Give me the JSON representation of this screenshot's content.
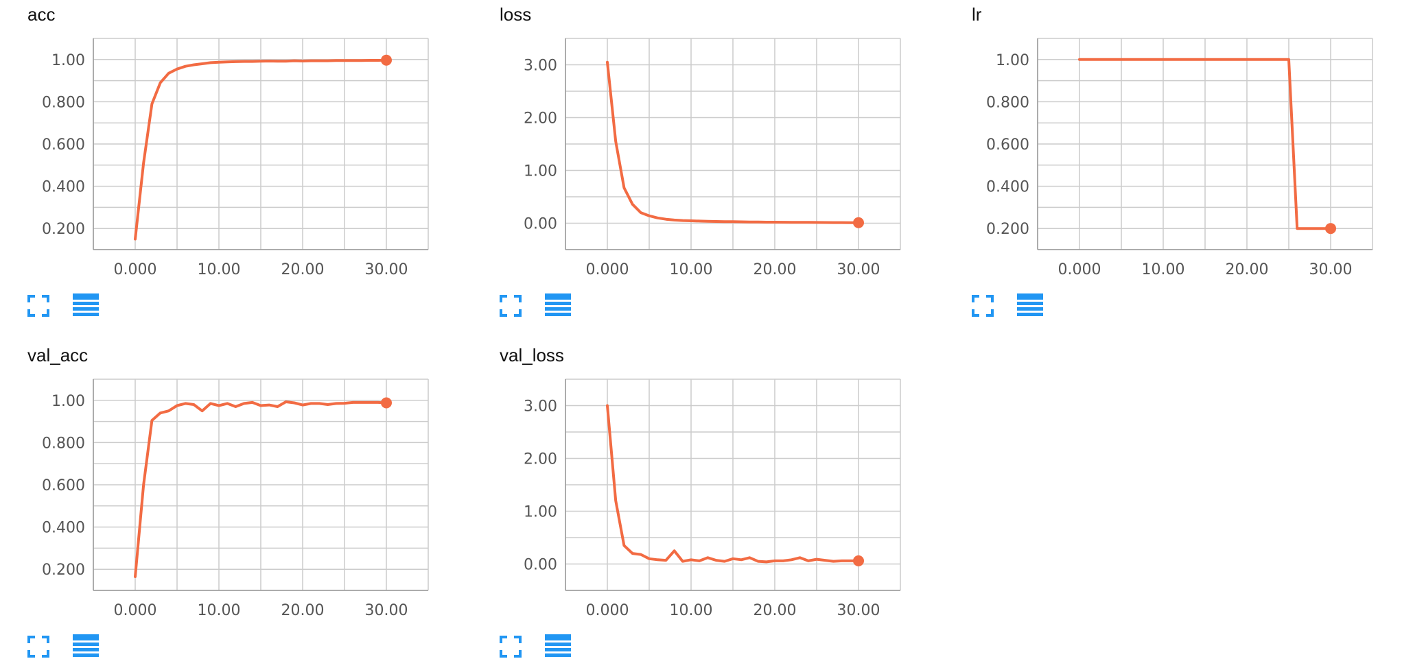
{
  "theme": {
    "series_color": "#f26b43",
    "icon_color": "#2196f3"
  },
  "icons": {
    "expand": "expand-icon",
    "data_table": "data-table-icon"
  },
  "chart_data": [
    {
      "id": "acc",
      "type": "line",
      "title": "acc",
      "xlim": [
        -5,
        35
      ],
      "ylim": [
        0.1,
        1.1
      ],
      "xticks": [
        0,
        10,
        20,
        30
      ],
      "xtick_labels": [
        "0.000",
        "10.00",
        "20.00",
        "30.00"
      ],
      "yticks": [
        0.2,
        0.4,
        0.6,
        0.8,
        1.0
      ],
      "ytick_labels": [
        "0.200",
        "0.400",
        "0.600",
        "0.800",
        "1.00"
      ],
      "grid": true,
      "x": [
        0,
        1,
        2,
        3,
        4,
        5,
        6,
        7,
        8,
        9,
        10,
        11,
        12,
        13,
        14,
        15,
        16,
        17,
        18,
        19,
        20,
        21,
        22,
        23,
        24,
        25,
        26,
        27,
        28,
        29,
        30
      ],
      "y": [
        0.15,
        0.51,
        0.79,
        0.89,
        0.935,
        0.955,
        0.968,
        0.975,
        0.98,
        0.985,
        0.987,
        0.989,
        0.99,
        0.991,
        0.991,
        0.992,
        0.993,
        0.992,
        0.992,
        0.994,
        0.993,
        0.994,
        0.994,
        0.994,
        0.995,
        0.995,
        0.995,
        0.995,
        0.996,
        0.996,
        0.997
      ]
    },
    {
      "id": "loss",
      "type": "line",
      "title": "loss",
      "xlim": [
        -5,
        35
      ],
      "ylim": [
        -0.5,
        3.5
      ],
      "xticks": [
        0,
        10,
        20,
        30
      ],
      "xtick_labels": [
        "0.000",
        "10.00",
        "20.00",
        "30.00"
      ],
      "yticks": [
        0,
        1,
        2,
        3
      ],
      "ytick_labels": [
        "0.00",
        "1.00",
        "2.00",
        "3.00"
      ],
      "grid": true,
      "x": [
        0,
        1,
        2,
        3,
        4,
        5,
        6,
        7,
        8,
        9,
        10,
        11,
        12,
        13,
        14,
        15,
        16,
        17,
        18,
        19,
        20,
        21,
        22,
        23,
        24,
        25,
        26,
        27,
        28,
        29,
        30
      ],
      "y": [
        3.05,
        1.55,
        0.67,
        0.36,
        0.2,
        0.14,
        0.1,
        0.075,
        0.06,
        0.05,
        0.045,
        0.04,
        0.035,
        0.032,
        0.03,
        0.028,
        0.026,
        0.024,
        0.022,
        0.02,
        0.02,
        0.018,
        0.017,
        0.016,
        0.015,
        0.014,
        0.013,
        0.012,
        0.012,
        0.011,
        0.01
      ]
    },
    {
      "id": "lr",
      "type": "line",
      "title": "lr",
      "xlim": [
        -5,
        35
      ],
      "ylim": [
        0.1,
        1.1
      ],
      "xticks": [
        0,
        10,
        20,
        30
      ],
      "xtick_labels": [
        "0.000",
        "10.00",
        "20.00",
        "30.00"
      ],
      "yticks": [
        0.2,
        0.4,
        0.6,
        0.8,
        1.0
      ],
      "ytick_labels": [
        "0.200",
        "0.400",
        "0.600",
        "0.800",
        "1.00"
      ],
      "grid": true,
      "x": [
        0,
        1,
        2,
        3,
        4,
        5,
        6,
        7,
        8,
        9,
        10,
        11,
        12,
        13,
        14,
        15,
        16,
        17,
        18,
        19,
        20,
        21,
        22,
        23,
        24,
        25,
        26,
        27,
        28,
        29,
        30
      ],
      "y": [
        1,
        1,
        1,
        1,
        1,
        1,
        1,
        1,
        1,
        1,
        1,
        1,
        1,
        1,
        1,
        1,
        1,
        1,
        1,
        1,
        1,
        1,
        1,
        1,
        1,
        1,
        0.2,
        0.2,
        0.2,
        0.2,
        0.2
      ]
    },
    {
      "id": "val_acc",
      "type": "line",
      "title": "val_acc",
      "xlim": [
        -5,
        35
      ],
      "ylim": [
        0.1,
        1.1
      ],
      "xticks": [
        0,
        10,
        20,
        30
      ],
      "xtick_labels": [
        "0.000",
        "10.00",
        "20.00",
        "30.00"
      ],
      "yticks": [
        0.2,
        0.4,
        0.6,
        0.8,
        1.0
      ],
      "ytick_labels": [
        "0.200",
        "0.400",
        "0.600",
        "0.800",
        "1.00"
      ],
      "grid": true,
      "x": [
        0,
        1,
        2,
        3,
        4,
        5,
        6,
        7,
        8,
        9,
        10,
        11,
        12,
        13,
        14,
        15,
        16,
        17,
        18,
        19,
        20,
        21,
        22,
        23,
        24,
        25,
        26,
        27,
        28,
        29,
        30
      ],
      "y": [
        0.165,
        0.6,
        0.905,
        0.94,
        0.95,
        0.975,
        0.985,
        0.98,
        0.95,
        0.985,
        0.975,
        0.985,
        0.97,
        0.985,
        0.99,
        0.975,
        0.978,
        0.97,
        0.993,
        0.988,
        0.978,
        0.985,
        0.985,
        0.98,
        0.985,
        0.986,
        0.99,
        0.99,
        0.99,
        0.99,
        0.988
      ]
    },
    {
      "id": "val_loss",
      "type": "line",
      "title": "val_loss",
      "xlim": [
        -5,
        35
      ],
      "ylim": [
        -0.5,
        3.5
      ],
      "xticks": [
        0,
        10,
        20,
        30
      ],
      "xtick_labels": [
        "0.000",
        "10.00",
        "20.00",
        "30.00"
      ],
      "yticks": [
        0,
        1,
        2,
        3
      ],
      "ytick_labels": [
        "0.00",
        "1.00",
        "2.00",
        "3.00"
      ],
      "grid": true,
      "x": [
        0,
        1,
        2,
        3,
        4,
        5,
        6,
        7,
        8,
        9,
        10,
        11,
        12,
        13,
        14,
        15,
        16,
        17,
        18,
        19,
        20,
        21,
        22,
        23,
        24,
        25,
        26,
        27,
        28,
        29,
        30
      ],
      "y": [
        3.0,
        1.2,
        0.35,
        0.2,
        0.18,
        0.1,
        0.08,
        0.07,
        0.25,
        0.05,
        0.08,
        0.06,
        0.12,
        0.07,
        0.05,
        0.1,
        0.08,
        0.12,
        0.05,
        0.04,
        0.06,
        0.06,
        0.08,
        0.12,
        0.06,
        0.09,
        0.07,
        0.05,
        0.06,
        0.06,
        0.06
      ]
    }
  ]
}
